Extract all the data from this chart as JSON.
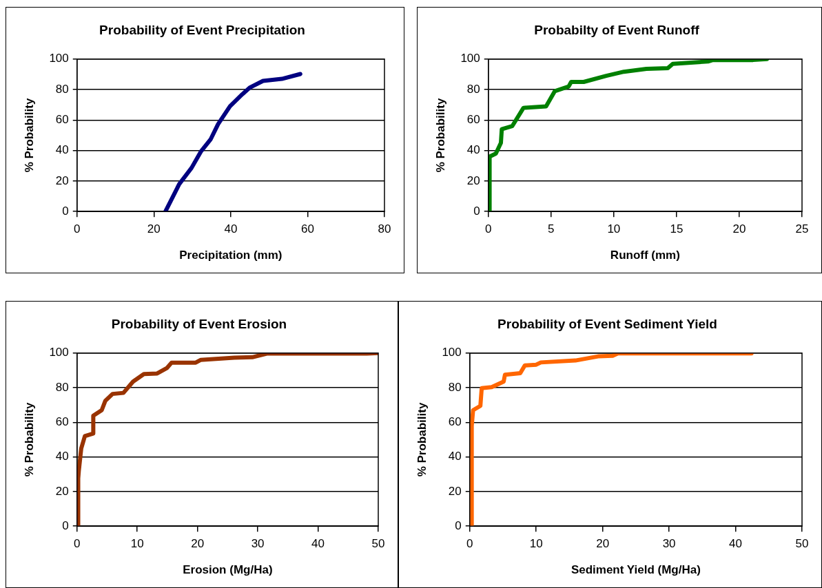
{
  "chart_data": [
    {
      "type": "line",
      "title": "Probability of Event Precipitation",
      "xlabel": "Precipitation (mm)",
      "ylabel": "% Probability",
      "xlim": [
        0,
        80
      ],
      "xticks": [
        0,
        20,
        40,
        60,
        80
      ],
      "ylim": [
        0,
        100
      ],
      "yticks": [
        0,
        20,
        40,
        60,
        80,
        100
      ],
      "grid": "y",
      "series": [
        {
          "color": "#000080",
          "x": [
            23.0,
            26.6,
            29.8,
            32.3,
            34.8,
            36.7,
            39.8,
            43.0,
            44.9,
            48.4,
            53.3,
            58.1
          ],
          "values": [
            0,
            18,
            28.6,
            39.6,
            47.5,
            57.3,
            69,
            76.9,
            81.2,
            85.7,
            87,
            90.2
          ]
        }
      ]
    },
    {
      "type": "line",
      "title": "Probabilty of Event Runoff",
      "xlabel": "Runoff (mm)",
      "ylabel": "% Probability",
      "xlim": [
        0,
        25
      ],
      "xticks": [
        0,
        5,
        10,
        15,
        20,
        25
      ],
      "ylim": [
        0,
        100
      ],
      "yticks": [
        0,
        20,
        40,
        60,
        80,
        100
      ],
      "grid": "y",
      "series": [
        {
          "color": "#008000",
          "x": [
            0.1,
            0.1,
            0.6,
            1.0,
            1.07,
            1.9,
            2.8,
            4.6,
            5.3,
            6.4,
            6.6,
            7.6,
            9.4,
            10.8,
            12.6,
            14.3,
            14.7,
            17.5,
            17.9,
            21.1,
            22.2
          ],
          "values": [
            0,
            36,
            38,
            45,
            54,
            56,
            68,
            69,
            79,
            82,
            85,
            85,
            89,
            91.7,
            93.6,
            94,
            96.9,
            98.4,
            99.4,
            99.4,
            100
          ]
        }
      ]
    },
    {
      "type": "line",
      "title": "Probability of Event Erosion",
      "xlabel": "Erosion (Mg/Ha)",
      "ylabel": "% Probability",
      "xlim": [
        0,
        50
      ],
      "xticks": [
        0,
        10,
        20,
        30,
        40,
        50
      ],
      "ylim": [
        0,
        100
      ],
      "yticks": [
        0,
        20,
        40,
        60,
        80,
        100
      ],
      "grid": "y",
      "series": [
        {
          "color": "#993300",
          "x": [
            0.2,
            0.2,
            0.3,
            0.7,
            1.3,
            2.7,
            2.7,
            4.1,
            4.7,
            5.9,
            7.7,
            9.3,
            11.1,
            13.3,
            14.9,
            15.7,
            19.7,
            20.5,
            26.1,
            29.1,
            31.5,
            48.1,
            50
          ],
          "values": [
            0,
            27.6,
            32,
            44.9,
            52,
            53.5,
            63.8,
            67,
            72.4,
            76.4,
            77,
            83.5,
            87.9,
            88.2,
            91.3,
            94.5,
            94.5,
            96,
            97.3,
            97.6,
            99.7,
            99.7,
            100
          ]
        }
      ]
    },
    {
      "type": "line",
      "title": "Probability of Event Sediment Yield",
      "xlabel": "Sediment Yield (Mg/Ha)",
      "ylabel": "% Probability",
      "xlim": [
        0,
        50
      ],
      "xticks": [
        0,
        10,
        20,
        30,
        40,
        50
      ],
      "ylim": [
        0,
        100
      ],
      "yticks": [
        0,
        20,
        40,
        60,
        80,
        100
      ],
      "grid": "y",
      "series": [
        {
          "color": "#ff6600",
          "x": [
            0.3,
            0.3,
            0.5,
            1.6,
            1.8,
            3.3,
            5.1,
            5.3,
            7.6,
            8.3,
            10,
            10.7,
            15.9,
            19.3,
            21.5,
            22.3,
            42.4
          ],
          "values": [
            0,
            58,
            67,
            69.5,
            79.7,
            80.3,
            83.5,
            87.5,
            88.4,
            92.9,
            93.3,
            94.6,
            95.7,
            98.1,
            98.4,
            99.8,
            99.8
          ]
        }
      ]
    }
  ]
}
